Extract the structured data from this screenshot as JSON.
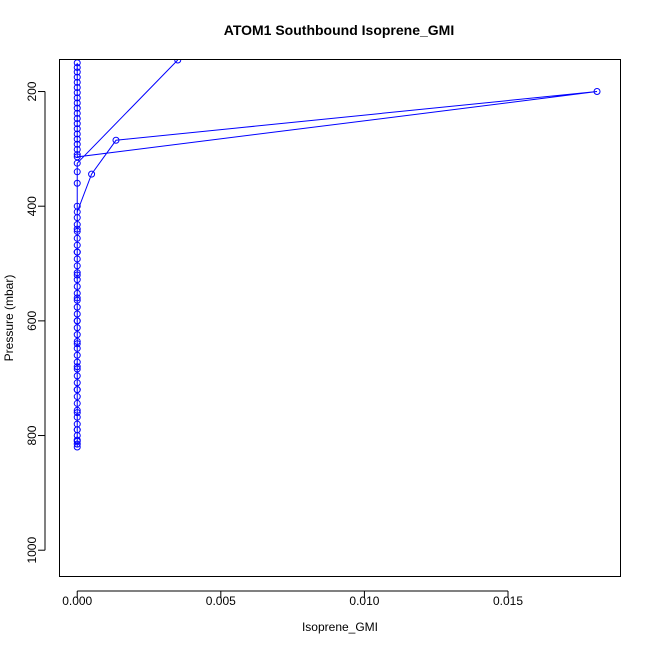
{
  "chart_data": {
    "type": "line",
    "title": "ATOM1 Southbound Isoprene_GMI",
    "xlabel": "Isoprene_GMI",
    "ylabel": "Pressure (mbar)",
    "xlim": [
      -0.0006,
      0.0189
    ],
    "ylim": [
      1045,
      145
    ],
    "y_reversed": true,
    "grid": false,
    "x_ticks": [
      {
        "value": 0.0,
        "label": "0.000"
      },
      {
        "value": 0.005,
        "label": "0.005"
      },
      {
        "value": 0.01,
        "label": "0.010"
      },
      {
        "value": 0.015,
        "label": "0.015"
      }
    ],
    "y_ticks": [
      {
        "value": 200,
        "label": "200"
      },
      {
        "value": 400,
        "label": "400"
      },
      {
        "value": 600,
        "label": "600"
      },
      {
        "value": 800,
        "label": "800"
      },
      {
        "value": 1000,
        "label": "1000"
      }
    ],
    "series": [
      {
        "color": "#0000ff",
        "marker": "open-circle",
        "line": true,
        "points": [
          [
            0.0,
            150
          ],
          [
            0.0,
            158
          ],
          [
            0.0,
            166
          ],
          [
            0.0,
            175
          ],
          [
            0.0,
            184
          ],
          [
            0.0,
            193
          ],
          [
            0.0,
            202
          ],
          [
            0.0,
            211
          ],
          [
            0.0,
            220
          ],
          [
            0.0,
            229
          ],
          [
            0.0,
            238
          ],
          [
            0.0,
            247
          ],
          [
            0.0,
            256
          ],
          [
            0.0,
            265
          ],
          [
            0.0,
            274
          ],
          [
            0.0,
            283
          ],
          [
            0.0,
            292
          ],
          [
            0.0,
            301
          ],
          [
            0.0,
            310
          ],
          [
            0.0,
            314
          ],
          [
            0.0181,
            200
          ],
          [
            0.00135,
            285
          ],
          [
            0.0005,
            344
          ],
          [
            0.0,
            410
          ],
          [
            0.0,
            420
          ],
          [
            0.0,
            432
          ],
          [
            0.0,
            444
          ],
          [
            0.0,
            456
          ],
          [
            0.0,
            468
          ],
          [
            0.0,
            480
          ],
          [
            0.0,
            492
          ],
          [
            0.0,
            504
          ],
          [
            0.0,
            516
          ],
          [
            0.0,
            528
          ],
          [
            0.0,
            540
          ],
          [
            0.0,
            552
          ],
          [
            0.0,
            564
          ],
          [
            0.0,
            576
          ],
          [
            0.0,
            588
          ],
          [
            0.0,
            600
          ],
          [
            0.0,
            612
          ],
          [
            0.0,
            624
          ],
          [
            0.0,
            636
          ],
          [
            0.0,
            648
          ],
          [
            0.0,
            660
          ],
          [
            0.0,
            672
          ],
          [
            0.0,
            684
          ],
          [
            0.0,
            696
          ],
          [
            0.0,
            708
          ],
          [
            0.0,
            720
          ],
          [
            0.0,
            732
          ],
          [
            0.0,
            744
          ],
          [
            0.0,
            756
          ],
          [
            0.0,
            768
          ],
          [
            0.0,
            780
          ],
          [
            0.0,
            790
          ],
          [
            0.0,
            800
          ],
          [
            0.0,
            808
          ],
          [
            0.0,
            815
          ],
          [
            0.0,
            820
          ],
          [
            0.0,
            810
          ],
          [
            0.0,
            790
          ],
          [
            0.0,
            760
          ],
          [
            0.0,
            720
          ],
          [
            0.0,
            680
          ],
          [
            0.0,
            640
          ],
          [
            0.0,
            600
          ],
          [
            0.0,
            560
          ],
          [
            0.0,
            520
          ],
          [
            0.0,
            480
          ],
          [
            0.0,
            440
          ],
          [
            0.0,
            400
          ],
          [
            0.0,
            360
          ],
          [
            0.0,
            340
          ],
          [
            0.0,
            325
          ],
          [
            0.0035,
            145
          ]
        ]
      }
    ]
  }
}
